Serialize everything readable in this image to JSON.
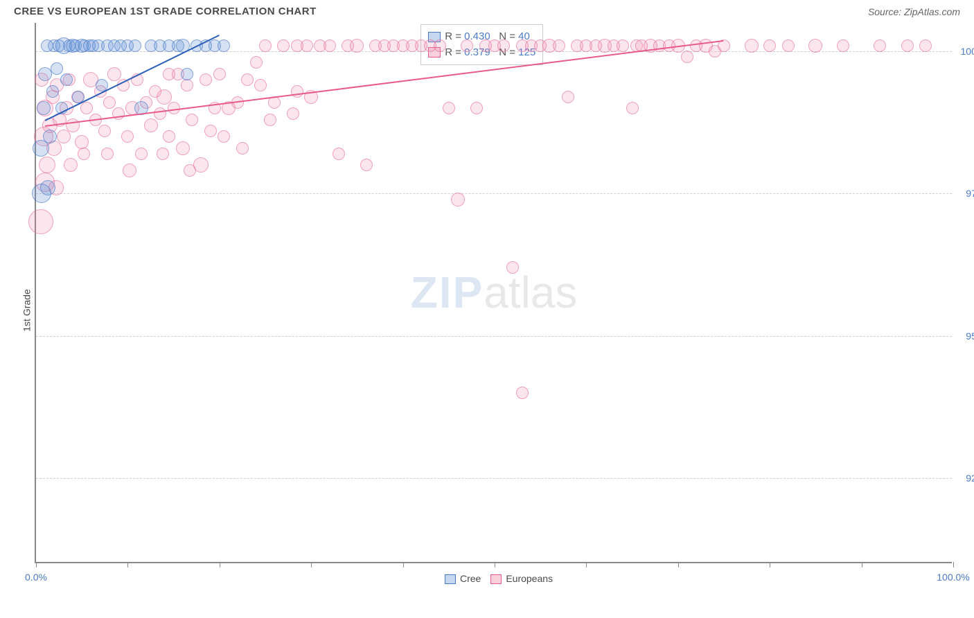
{
  "title": "CREE VS EUROPEAN 1ST GRADE CORRELATION CHART",
  "source_label": "Source: ",
  "source_value": "ZipAtlas.com",
  "y_axis_label": "1st Grade",
  "watermark": {
    "zip": "ZIP",
    "atlas": "atlas"
  },
  "colors": {
    "cree_fill": "rgba(90,140,210,0.25)",
    "cree_stroke": "rgba(70,120,200,0.6)",
    "eu_fill": "rgba(240,130,170,0.2)",
    "eu_stroke": "rgba(230,100,150,0.55)",
    "cree_line": "#2b5fb8",
    "eu_line": "#e85a8a",
    "axis_text": "#4a7bc8",
    "grid": "#d0d0d0"
  },
  "chart": {
    "type": "scatter",
    "xlim": [
      0,
      100
    ],
    "ylim": [
      91,
      100.5
    ],
    "x_ticks": [
      0,
      10,
      20,
      30,
      40,
      50,
      60,
      70,
      80,
      90,
      100
    ],
    "x_tick_labels": {
      "0": "0.0%",
      "100": "100.0%"
    },
    "y_ticks": [
      92.5,
      95.0,
      97.5,
      100.0
    ],
    "y_tick_labels": [
      "92.5%",
      "95.0%",
      "97.5%",
      "100.0%"
    ]
  },
  "stats_legend": [
    {
      "series": "cree",
      "R": "0.430",
      "N": "40"
    },
    {
      "series": "eu",
      "R": "0.379",
      "N": "125"
    }
  ],
  "series_legend": [
    {
      "key": "cree",
      "label": "Cree"
    },
    {
      "key": "eu",
      "label": "Europeans"
    }
  ],
  "trend_lines": {
    "cree": {
      "x1": 1,
      "y1": 98.8,
      "x2": 20,
      "y2": 100.3
    },
    "eu": {
      "x1": 1,
      "y1": 98.7,
      "x2": 75,
      "y2": 100.2
    }
  },
  "points_cree": [
    {
      "x": 0.5,
      "y": 98.3,
      "r": 12
    },
    {
      "x": 0.8,
      "y": 99.0,
      "r": 10
    },
    {
      "x": 1.0,
      "y": 99.6,
      "r": 10
    },
    {
      "x": 1.2,
      "y": 100.1,
      "r": 9
    },
    {
      "x": 1.5,
      "y": 98.5,
      "r": 10
    },
    {
      "x": 1.8,
      "y": 99.3,
      "r": 9
    },
    {
      "x": 2.0,
      "y": 100.1,
      "r": 9
    },
    {
      "x": 2.3,
      "y": 99.7,
      "r": 9
    },
    {
      "x": 2.5,
      "y": 100.1,
      "r": 9
    },
    {
      "x": 2.8,
      "y": 99.0,
      "r": 9
    },
    {
      "x": 3.0,
      "y": 100.1,
      "r": 12
    },
    {
      "x": 3.3,
      "y": 99.5,
      "r": 9
    },
    {
      "x": 3.6,
      "y": 100.1,
      "r": 9
    },
    {
      "x": 4.0,
      "y": 100.1,
      "r": 10
    },
    {
      "x": 4.3,
      "y": 100.1,
      "r": 9
    },
    {
      "x": 4.6,
      "y": 99.2,
      "r": 9
    },
    {
      "x": 5.0,
      "y": 100.1,
      "r": 10
    },
    {
      "x": 5.3,
      "y": 100.1,
      "r": 9
    },
    {
      "x": 5.8,
      "y": 100.1,
      "r": 9
    },
    {
      "x": 6.2,
      "y": 100.1,
      "r": 9
    },
    {
      "x": 6.8,
      "y": 100.1,
      "r": 9
    },
    {
      "x": 7.2,
      "y": 99.4,
      "r": 9
    },
    {
      "x": 7.8,
      "y": 100.1,
      "r": 9
    },
    {
      "x": 8.5,
      "y": 100.1,
      "r": 9
    },
    {
      "x": 9.2,
      "y": 100.1,
      "r": 9
    },
    {
      "x": 10.0,
      "y": 100.1,
      "r": 9
    },
    {
      "x": 10.8,
      "y": 100.1,
      "r": 9
    },
    {
      "x": 11.5,
      "y": 99.0,
      "r": 10
    },
    {
      "x": 12.5,
      "y": 100.1,
      "r": 9
    },
    {
      "x": 13.5,
      "y": 100.1,
      "r": 9
    },
    {
      "x": 14.5,
      "y": 100.1,
      "r": 9
    },
    {
      "x": 15.5,
      "y": 100.1,
      "r": 9
    },
    {
      "x": 16.0,
      "y": 100.1,
      "r": 10
    },
    {
      "x": 16.5,
      "y": 99.6,
      "r": 9
    },
    {
      "x": 17.5,
      "y": 100.1,
      "r": 9
    },
    {
      "x": 18.5,
      "y": 100.1,
      "r": 9
    },
    {
      "x": 19.5,
      "y": 100.1,
      "r": 9
    },
    {
      "x": 20.5,
      "y": 100.1,
      "r": 9
    },
    {
      "x": 0.6,
      "y": 97.5,
      "r": 14
    },
    {
      "x": 1.3,
      "y": 97.6,
      "r": 11
    }
  ],
  "points_eu": [
    {
      "x": 0.5,
      "y": 97.0,
      "r": 18
    },
    {
      "x": 0.8,
      "y": 98.5,
      "r": 14
    },
    {
      "x": 1.0,
      "y": 99.0,
      "r": 12
    },
    {
      "x": 1.2,
      "y": 98.0,
      "r": 12
    },
    {
      "x": 1.5,
      "y": 98.7,
      "r": 11
    },
    {
      "x": 1.8,
      "y": 99.2,
      "r": 10
    },
    {
      "x": 2.0,
      "y": 98.3,
      "r": 11
    },
    {
      "x": 2.3,
      "y": 99.4,
      "r": 10
    },
    {
      "x": 2.6,
      "y": 98.8,
      "r": 10
    },
    {
      "x": 3.0,
      "y": 98.5,
      "r": 10
    },
    {
      "x": 3.3,
      "y": 99.0,
      "r": 10
    },
    {
      "x": 3.6,
      "y": 99.5,
      "r": 9
    },
    {
      "x": 4.0,
      "y": 98.7,
      "r": 10
    },
    {
      "x": 4.5,
      "y": 99.2,
      "r": 9
    },
    {
      "x": 5.0,
      "y": 98.4,
      "r": 10
    },
    {
      "x": 5.5,
      "y": 99.0,
      "r": 9
    },
    {
      "x": 6.0,
      "y": 99.5,
      "r": 11
    },
    {
      "x": 6.5,
      "y": 98.8,
      "r": 9
    },
    {
      "x": 7.0,
      "y": 99.3,
      "r": 9
    },
    {
      "x": 7.5,
      "y": 98.6,
      "r": 9
    },
    {
      "x": 8.0,
      "y": 99.1,
      "r": 9
    },
    {
      "x": 8.5,
      "y": 99.6,
      "r": 10
    },
    {
      "x": 9.0,
      "y": 98.9,
      "r": 9
    },
    {
      "x": 9.5,
      "y": 99.4,
      "r": 9
    },
    {
      "x": 10.0,
      "y": 98.5,
      "r": 9
    },
    {
      "x": 10.5,
      "y": 99.0,
      "r": 10
    },
    {
      "x": 11.0,
      "y": 99.5,
      "r": 9
    },
    {
      "x": 11.5,
      "y": 98.2,
      "r": 9
    },
    {
      "x": 12.0,
      "y": 99.1,
      "r": 9
    },
    {
      "x": 12.5,
      "y": 98.7,
      "r": 10
    },
    {
      "x": 13.0,
      "y": 99.3,
      "r": 9
    },
    {
      "x": 13.5,
      "y": 98.9,
      "r": 9
    },
    {
      "x": 14.0,
      "y": 99.2,
      "r": 11
    },
    {
      "x": 14.5,
      "y": 98.5,
      "r": 9
    },
    {
      "x": 15.0,
      "y": 99.0,
      "r": 9
    },
    {
      "x": 15.5,
      "y": 99.6,
      "r": 9
    },
    {
      "x": 16.0,
      "y": 98.3,
      "r": 10
    },
    {
      "x": 16.5,
      "y": 99.4,
      "r": 9
    },
    {
      "x": 17.0,
      "y": 98.8,
      "r": 9
    },
    {
      "x": 18.0,
      "y": 98.0,
      "r": 11
    },
    {
      "x": 18.5,
      "y": 99.5,
      "r": 9
    },
    {
      "x": 19.0,
      "y": 98.6,
      "r": 9
    },
    {
      "x": 19.5,
      "y": 99.0,
      "r": 9
    },
    {
      "x": 20.0,
      "y": 99.6,
      "r": 9
    },
    {
      "x": 21.0,
      "y": 99.0,
      "r": 10
    },
    {
      "x": 22.0,
      "y": 99.1,
      "r": 9
    },
    {
      "x": 23.0,
      "y": 99.5,
      "r": 9
    },
    {
      "x": 24.0,
      "y": 99.8,
      "r": 9
    },
    {
      "x": 25.0,
      "y": 100.1,
      "r": 9
    },
    {
      "x": 26.0,
      "y": 99.1,
      "r": 9
    },
    {
      "x": 27.0,
      "y": 100.1,
      "r": 9
    },
    {
      "x": 28.0,
      "y": 98.9,
      "r": 9
    },
    {
      "x": 28.5,
      "y": 100.1,
      "r": 9
    },
    {
      "x": 29.5,
      "y": 100.1,
      "r": 9
    },
    {
      "x": 30.0,
      "y": 99.2,
      "r": 10
    },
    {
      "x": 31.0,
      "y": 100.1,
      "r": 9
    },
    {
      "x": 32.0,
      "y": 100.1,
      "r": 9
    },
    {
      "x": 33.0,
      "y": 98.2,
      "r": 9
    },
    {
      "x": 34.0,
      "y": 100.1,
      "r": 9
    },
    {
      "x": 35.0,
      "y": 100.1,
      "r": 10
    },
    {
      "x": 36.0,
      "y": 98.0,
      "r": 9
    },
    {
      "x": 37.0,
      "y": 100.1,
      "r": 9
    },
    {
      "x": 38.0,
      "y": 100.1,
      "r": 9
    },
    {
      "x": 39.0,
      "y": 100.1,
      "r": 9
    },
    {
      "x": 40.0,
      "y": 100.1,
      "r": 9
    },
    {
      "x": 41.0,
      "y": 100.1,
      "r": 9
    },
    {
      "x": 42.0,
      "y": 100.1,
      "r": 9
    },
    {
      "x": 43.0,
      "y": 100.1,
      "r": 9
    },
    {
      "x": 44.0,
      "y": 100.1,
      "r": 9
    },
    {
      "x": 45.0,
      "y": 99.0,
      "r": 9
    },
    {
      "x": 46.0,
      "y": 97.4,
      "r": 10
    },
    {
      "x": 47.0,
      "y": 100.1,
      "r": 9
    },
    {
      "x": 48.0,
      "y": 99.0,
      "r": 9
    },
    {
      "x": 49.0,
      "y": 100.1,
      "r": 9
    },
    {
      "x": 50.0,
      "y": 100.1,
      "r": 9
    },
    {
      "x": 51.0,
      "y": 100.1,
      "r": 9
    },
    {
      "x": 52.0,
      "y": 96.2,
      "r": 9
    },
    {
      "x": 53.0,
      "y": 100.1,
      "r": 9
    },
    {
      "x": 53.0,
      "y": 94.0,
      "r": 9
    },
    {
      "x": 54.0,
      "y": 100.1,
      "r": 9
    },
    {
      "x": 55.0,
      "y": 100.1,
      "r": 9
    },
    {
      "x": 56.0,
      "y": 100.1,
      "r": 10
    },
    {
      "x": 57.0,
      "y": 100.1,
      "r": 9
    },
    {
      "x": 58.0,
      "y": 99.2,
      "r": 9
    },
    {
      "x": 59.0,
      "y": 100.1,
      "r": 9
    },
    {
      "x": 60.0,
      "y": 100.1,
      "r": 9
    },
    {
      "x": 61.0,
      "y": 100.1,
      "r": 9
    },
    {
      "x": 62.0,
      "y": 100.1,
      "r": 10
    },
    {
      "x": 63.0,
      "y": 100.1,
      "r": 9
    },
    {
      "x": 64.0,
      "y": 100.1,
      "r": 9
    },
    {
      "x": 65.0,
      "y": 99.0,
      "r": 9
    },
    {
      "x": 65.5,
      "y": 100.1,
      "r": 9
    },
    {
      "x": 66.0,
      "y": 100.1,
      "r": 9
    },
    {
      "x": 67.0,
      "y": 100.1,
      "r": 10
    },
    {
      "x": 68.0,
      "y": 100.1,
      "r": 9
    },
    {
      "x": 69.0,
      "y": 100.1,
      "r": 9
    },
    {
      "x": 70.0,
      "y": 100.1,
      "r": 10
    },
    {
      "x": 71.0,
      "y": 99.9,
      "r": 9
    },
    {
      "x": 72.0,
      "y": 100.1,
      "r": 9
    },
    {
      "x": 73.0,
      "y": 100.1,
      "r": 10
    },
    {
      "x": 74.0,
      "y": 100.0,
      "r": 9
    },
    {
      "x": 75.0,
      "y": 100.1,
      "r": 9
    },
    {
      "x": 78.0,
      "y": 100.1,
      "r": 10
    },
    {
      "x": 80.0,
      "y": 100.1,
      "r": 9
    },
    {
      "x": 82.0,
      "y": 100.1,
      "r": 9
    },
    {
      "x": 85.0,
      "y": 100.1,
      "r": 10
    },
    {
      "x": 88.0,
      "y": 100.1,
      "r": 9
    },
    {
      "x": 92.0,
      "y": 100.1,
      "r": 9
    },
    {
      "x": 95.0,
      "y": 100.1,
      "r": 9
    },
    {
      "x": 97.0,
      "y": 100.1,
      "r": 9
    },
    {
      "x": 3.8,
      "y": 98.0,
      "r": 10
    },
    {
      "x": 5.2,
      "y": 98.2,
      "r": 9
    },
    {
      "x": 7.8,
      "y": 98.2,
      "r": 9
    },
    {
      "x": 10.2,
      "y": 97.9,
      "r": 10
    },
    {
      "x": 13.8,
      "y": 98.2,
      "r": 9
    },
    {
      "x": 16.8,
      "y": 97.9,
      "r": 9
    },
    {
      "x": 20.5,
      "y": 98.5,
      "r": 9
    },
    {
      "x": 22.5,
      "y": 98.3,
      "r": 9
    },
    {
      "x": 25.5,
      "y": 98.8,
      "r": 9
    },
    {
      "x": 1.0,
      "y": 97.7,
      "r": 14
    },
    {
      "x": 2.2,
      "y": 97.6,
      "r": 11
    },
    {
      "x": 0.6,
      "y": 99.5,
      "r": 10
    },
    {
      "x": 14.5,
      "y": 99.6,
      "r": 9
    },
    {
      "x": 24.5,
      "y": 99.4,
      "r": 9
    },
    {
      "x": 28.5,
      "y": 99.3,
      "r": 9
    }
  ]
}
